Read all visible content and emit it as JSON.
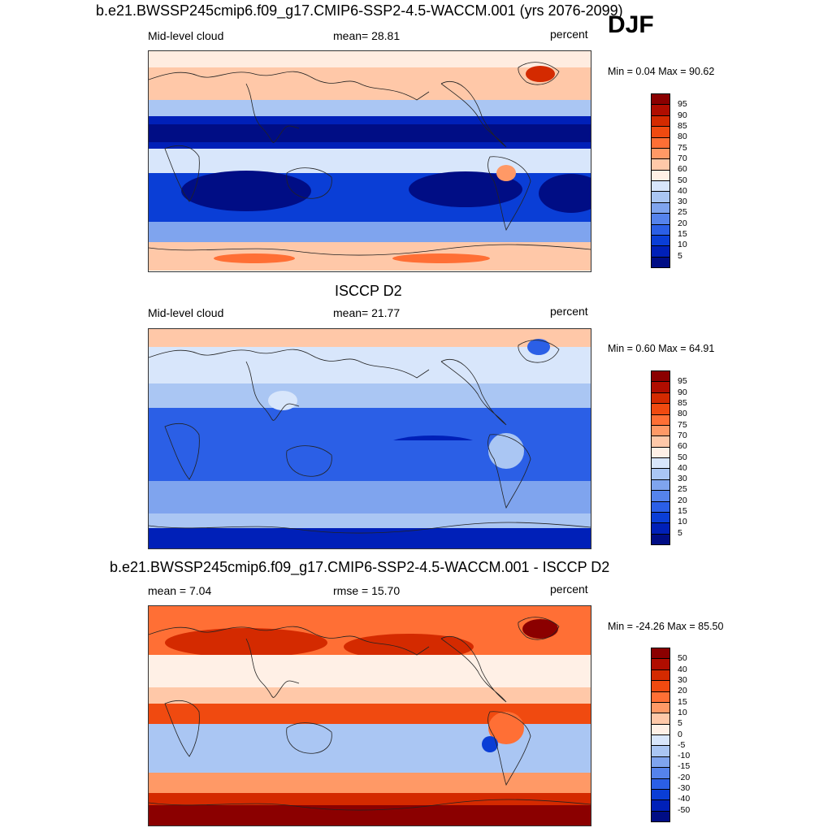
{
  "season": "DJF",
  "panels": [
    {
      "title": "b.e21.BWSSP245cmip6.f09_g17.CMIP6-SSP2-4.5-WACCM.001 (yrs 2076-2099)",
      "left_label": "Mid-level cloud",
      "center_label": "mean=  28.81",
      "right_label": "percent",
      "minmax": "Min =   0.04 Max =  90.62",
      "colorbar": [
        "95",
        "90",
        "85",
        "80",
        "75",
        "70",
        "60",
        "50",
        "40",
        "30",
        "25",
        "20",
        "15",
        "10",
        "5"
      ],
      "colors": [
        "#8b0000",
        "#b00d00",
        "#d42a00",
        "#f04a10",
        "#ff6f35",
        "#ff9966",
        "#ffc8a8",
        "#fff0e6",
        "#d8e6fb",
        "#aac6f3",
        "#7fa4ee",
        "#5583ec",
        "#2b5fe6",
        "#0a3ed6",
        "#0020b8",
        "#000d85"
      ],
      "style": "model"
    },
    {
      "title": "ISCCP D2",
      "left_label": "Mid-level cloud",
      "center_label": "mean=  21.77",
      "right_label": "percent",
      "minmax": "Min =   0.60 Max =  64.91",
      "colorbar": [
        "95",
        "90",
        "85",
        "80",
        "75",
        "70",
        "60",
        "50",
        "40",
        "30",
        "25",
        "20",
        "15",
        "10",
        "5"
      ],
      "colors": [
        "#8b0000",
        "#b00d00",
        "#d42a00",
        "#f04a10",
        "#ff6f35",
        "#ff9966",
        "#ffc8a8",
        "#fff0e6",
        "#d8e6fb",
        "#aac6f3",
        "#7fa4ee",
        "#5583ec",
        "#2b5fe6",
        "#0a3ed6",
        "#0020b8",
        "#000d85"
      ],
      "style": "obs"
    },
    {
      "title": "b.e21.BWSSP245cmip6.f09_g17.CMIP6-SSP2-4.5-WACCM.001 - ISCCP D2",
      "left_label": "mean =   7.04",
      "center_label": "rmse =  15.70",
      "right_label": "percent",
      "minmax": "Min = -24.26 Max =  85.50",
      "colorbar": [
        "50",
        "40",
        "30",
        "20",
        "15",
        "10",
        "5",
        "0",
        "-5",
        "-10",
        "-15",
        "-20",
        "-30",
        "-40",
        "-50"
      ],
      "colors": [
        "#8b0000",
        "#b00d00",
        "#d42a00",
        "#f04a10",
        "#ff6f35",
        "#ff9966",
        "#ffc8a8",
        "#fff0e6",
        "#d8e6fb",
        "#aac6f3",
        "#7fa4ee",
        "#5583ec",
        "#2b5fe6",
        "#0a3ed6",
        "#0020b8",
        "#000d85"
      ],
      "style": "diff"
    }
  ]
}
